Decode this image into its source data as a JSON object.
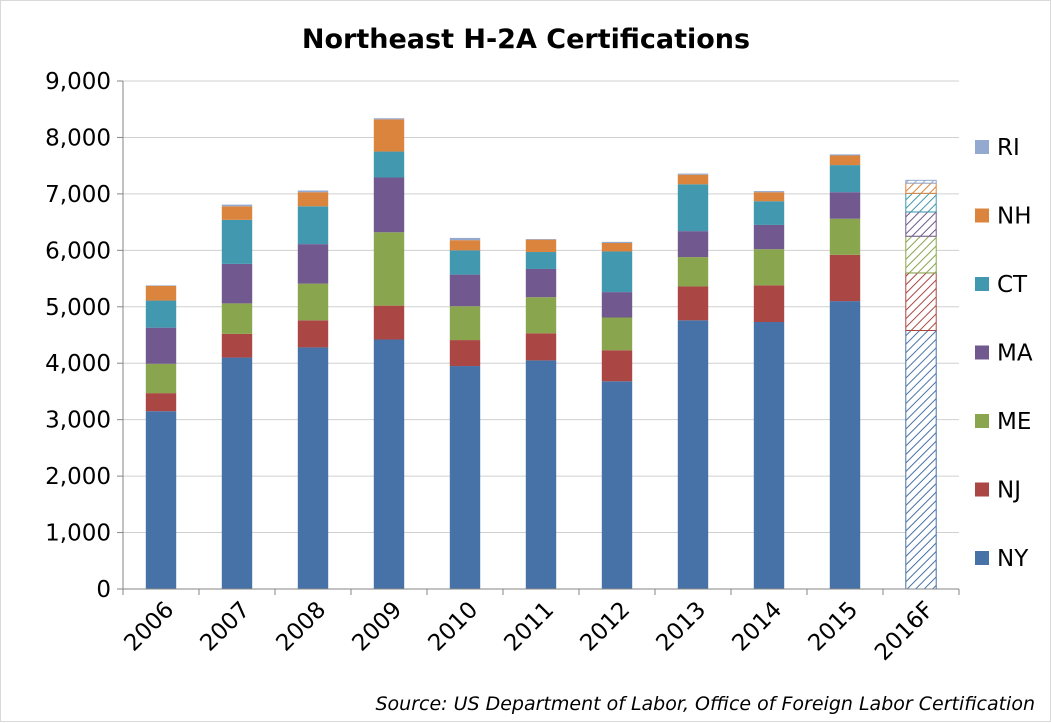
{
  "chart_data": {
    "type": "bar",
    "stacked": true,
    "title": "Northeast H-2A Certifications",
    "source": "Source: US Department of Labor, Office of Foreign Labor Certification",
    "categories": [
      "2006",
      "2007",
      "2008",
      "2009",
      "2010",
      "2011",
      "2012",
      "2013",
      "2014",
      "2015",
      "2016F"
    ],
    "forecast_categories": [
      "2016F"
    ],
    "ylim": [
      0,
      9000
    ],
    "yticks": [
      0,
      1000,
      2000,
      3000,
      4000,
      5000,
      6000,
      7000,
      8000,
      9000
    ],
    "ytick_labels": [
      "0",
      "1,000",
      "2,000",
      "3,000",
      "4,000",
      "5,000",
      "6,000",
      "7,000",
      "8,000",
      "9,000"
    ],
    "grid": true,
    "legend_position": "right",
    "series": [
      {
        "name": "NY",
        "color": "#4672a8",
        "values": [
          3150,
          4100,
          4280,
          4420,
          3950,
          4050,
          3680,
          4760,
          4730,
          5100,
          4580
        ]
      },
      {
        "name": "NJ",
        "color": "#aa4643",
        "values": [
          320,
          420,
          480,
          600,
          460,
          480,
          550,
          600,
          650,
          820,
          1020
        ]
      },
      {
        "name": "ME",
        "color": "#89a54e",
        "values": [
          520,
          540,
          650,
          1300,
          600,
          640,
          580,
          520,
          640,
          640,
          650
        ]
      },
      {
        "name": "MA",
        "color": "#71588f",
        "values": [
          640,
          700,
          700,
          970,
          560,
          500,
          450,
          460,
          430,
          470,
          430
        ]
      },
      {
        "name": "CT",
        "color": "#4198af",
        "values": [
          480,
          780,
          670,
          460,
          430,
          300,
          720,
          830,
          420,
          480,
          330
        ]
      },
      {
        "name": "NH",
        "color": "#db843d",
        "values": [
          260,
          240,
          250,
          570,
          180,
          220,
          150,
          170,
          160,
          170,
          180
        ]
      },
      {
        "name": "RI",
        "color": "#93a9cf",
        "values": [
          10,
          30,
          30,
          20,
          40,
          10,
          20,
          20,
          20,
          20,
          50
        ]
      }
    ]
  }
}
